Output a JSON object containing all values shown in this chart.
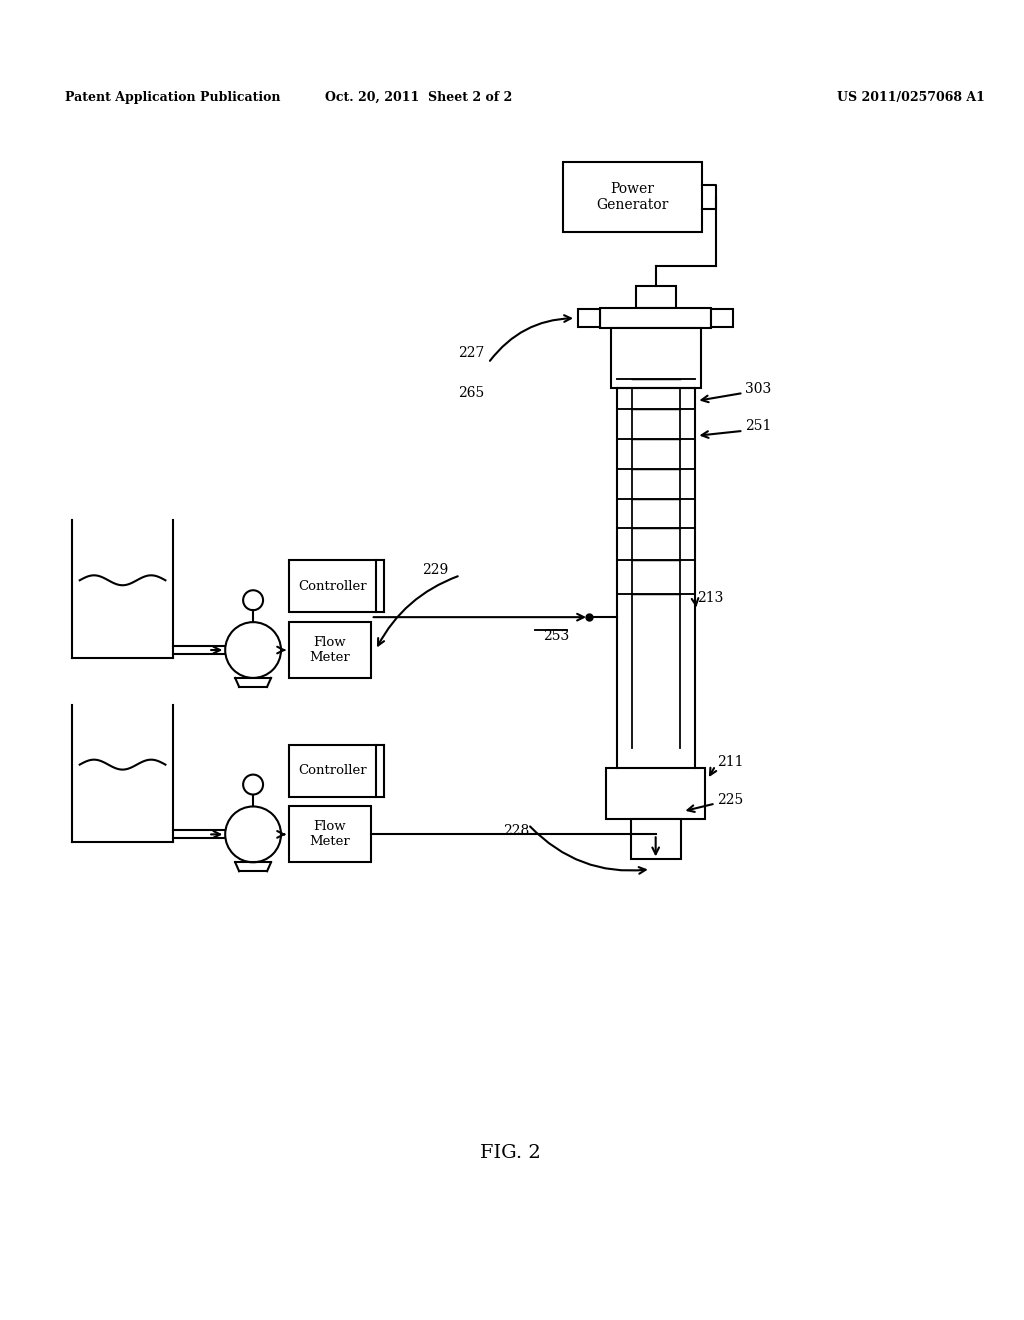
{
  "bg_color": "#ffffff",
  "header_left": "Patent Application Publication",
  "header_mid": "Oct. 20, 2011  Sheet 2 of 2",
  "header_right": "US 2011/0257068 A1",
  "fig_label": "FIG. 2",
  "line_color": "#000000",
  "lw": 1.5
}
